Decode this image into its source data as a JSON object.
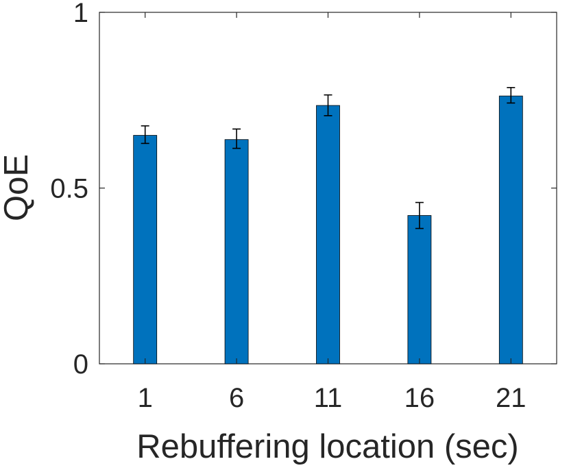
{
  "chart_data": {
    "type": "bar",
    "categories": [
      "1",
      "6",
      "11",
      "16",
      "21"
    ],
    "values": [
      0.65,
      0.638,
      0.735,
      0.422,
      0.762
    ],
    "error_low": [
      0.627,
      0.613,
      0.706,
      0.385,
      0.742
    ],
    "error_high": [
      0.677,
      0.668,
      0.765,
      0.459,
      0.786
    ],
    "title": "",
    "xlabel": "Rebuffering location (sec)",
    "ylabel": "QoE",
    "ylim": [
      0,
      1
    ],
    "yticks": [
      "0",
      "0.5",
      "1"
    ],
    "grid": false,
    "legend": "none",
    "bar_color": "#0072BD",
    "axis_color": "#262626"
  }
}
